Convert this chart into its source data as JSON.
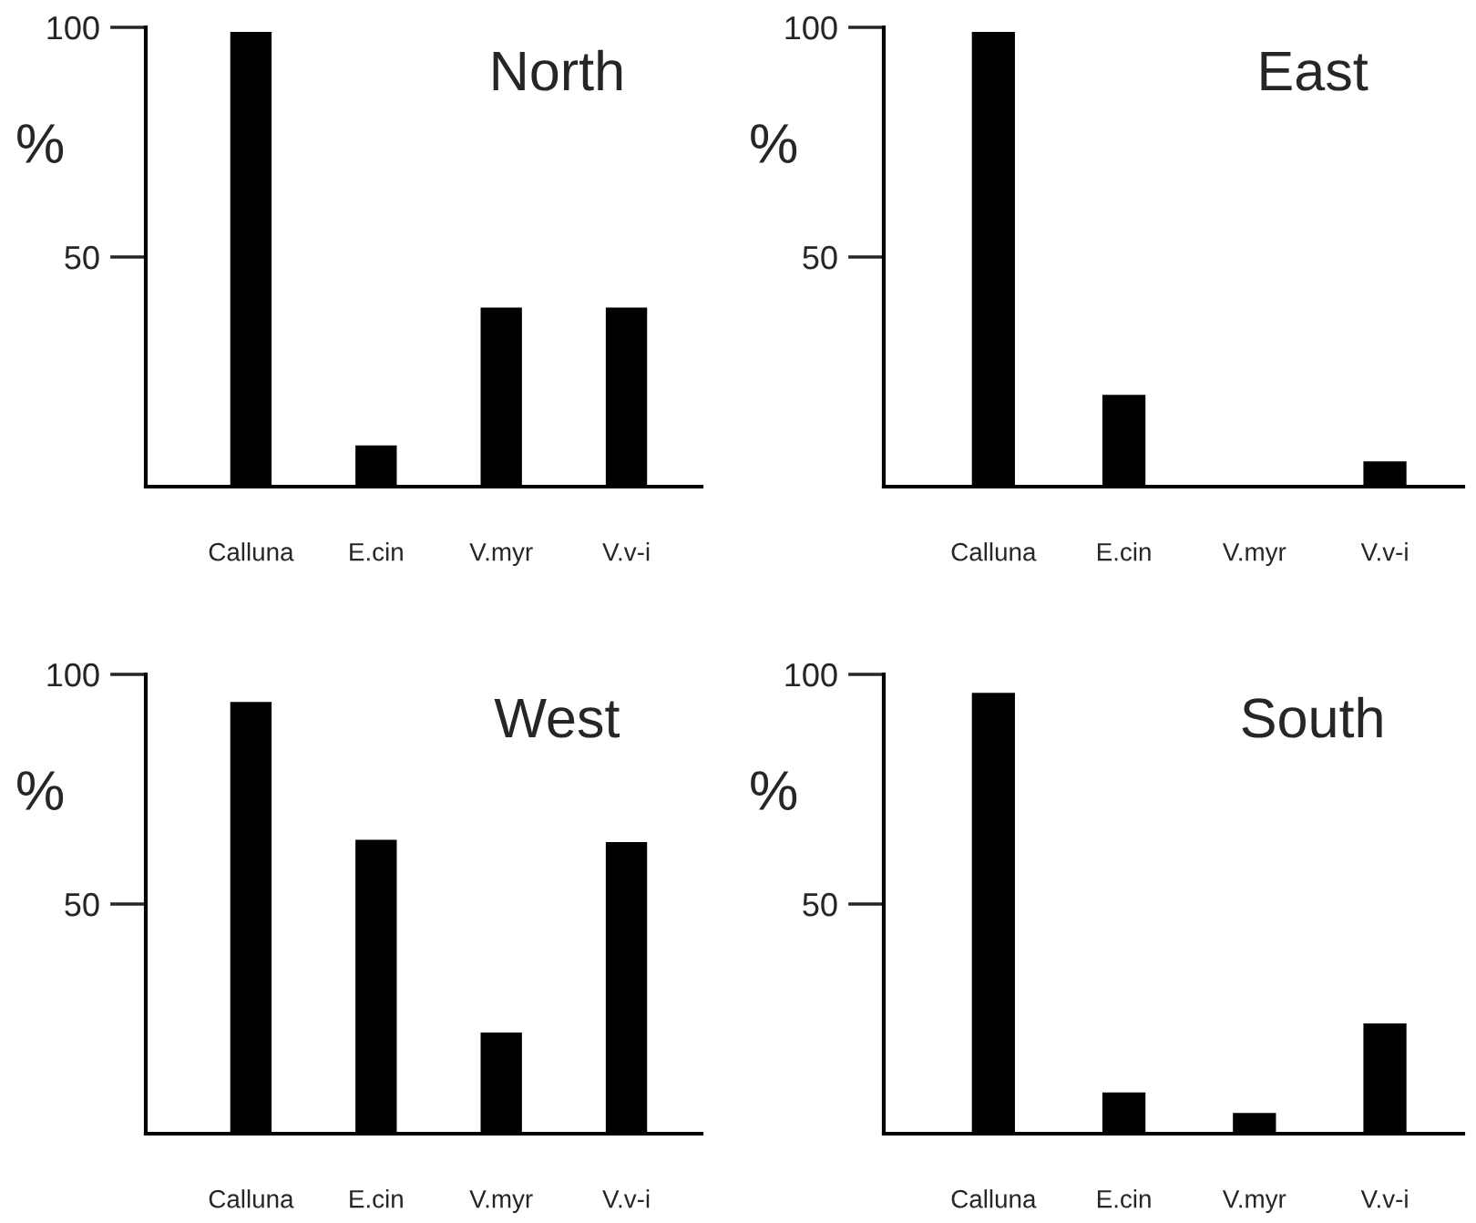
{
  "chart_data": [
    {
      "type": "bar",
      "title": "North",
      "ylabel": "%",
      "categories": [
        "Calluna",
        "E.cin",
        "V.myr",
        "V.v-i"
      ],
      "values": [
        99,
        9,
        39,
        39
      ],
      "color": "#000000",
      "ylim": [
        0,
        100
      ],
      "yticks": [
        50,
        100
      ],
      "grid": false
    },
    {
      "type": "bar",
      "title": "West",
      "ylabel": "%",
      "categories": [
        "Calluna",
        "E.cin",
        "V.myr",
        "V.v-i"
      ],
      "values": [
        94,
        64,
        22,
        63.5
      ],
      "color": "#000000",
      "ylim": [
        0,
        100
      ],
      "yticks": [
        50,
        100
      ],
      "grid": false
    },
    {
      "type": "bar",
      "title": "East",
      "ylabel": "%",
      "categories": [
        "Calluna",
        "E.cin",
        "V.myr",
        "V.v-i"
      ],
      "values": [
        99,
        20,
        0,
        5.5
      ],
      "color": "#000000",
      "ylim": [
        0,
        100
      ],
      "yticks": [
        50,
        100
      ],
      "grid": false
    },
    {
      "type": "bar",
      "title": "South",
      "ylabel": "%",
      "categories": [
        "Calluna",
        "E.cin",
        "V.myr",
        "V.v-i"
      ],
      "values": [
        96,
        9,
        4.5,
        24
      ],
      "color": "#000000",
      "ylim": [
        0,
        100
      ],
      "yticks": [
        50,
        100
      ],
      "grid": false
    }
  ]
}
